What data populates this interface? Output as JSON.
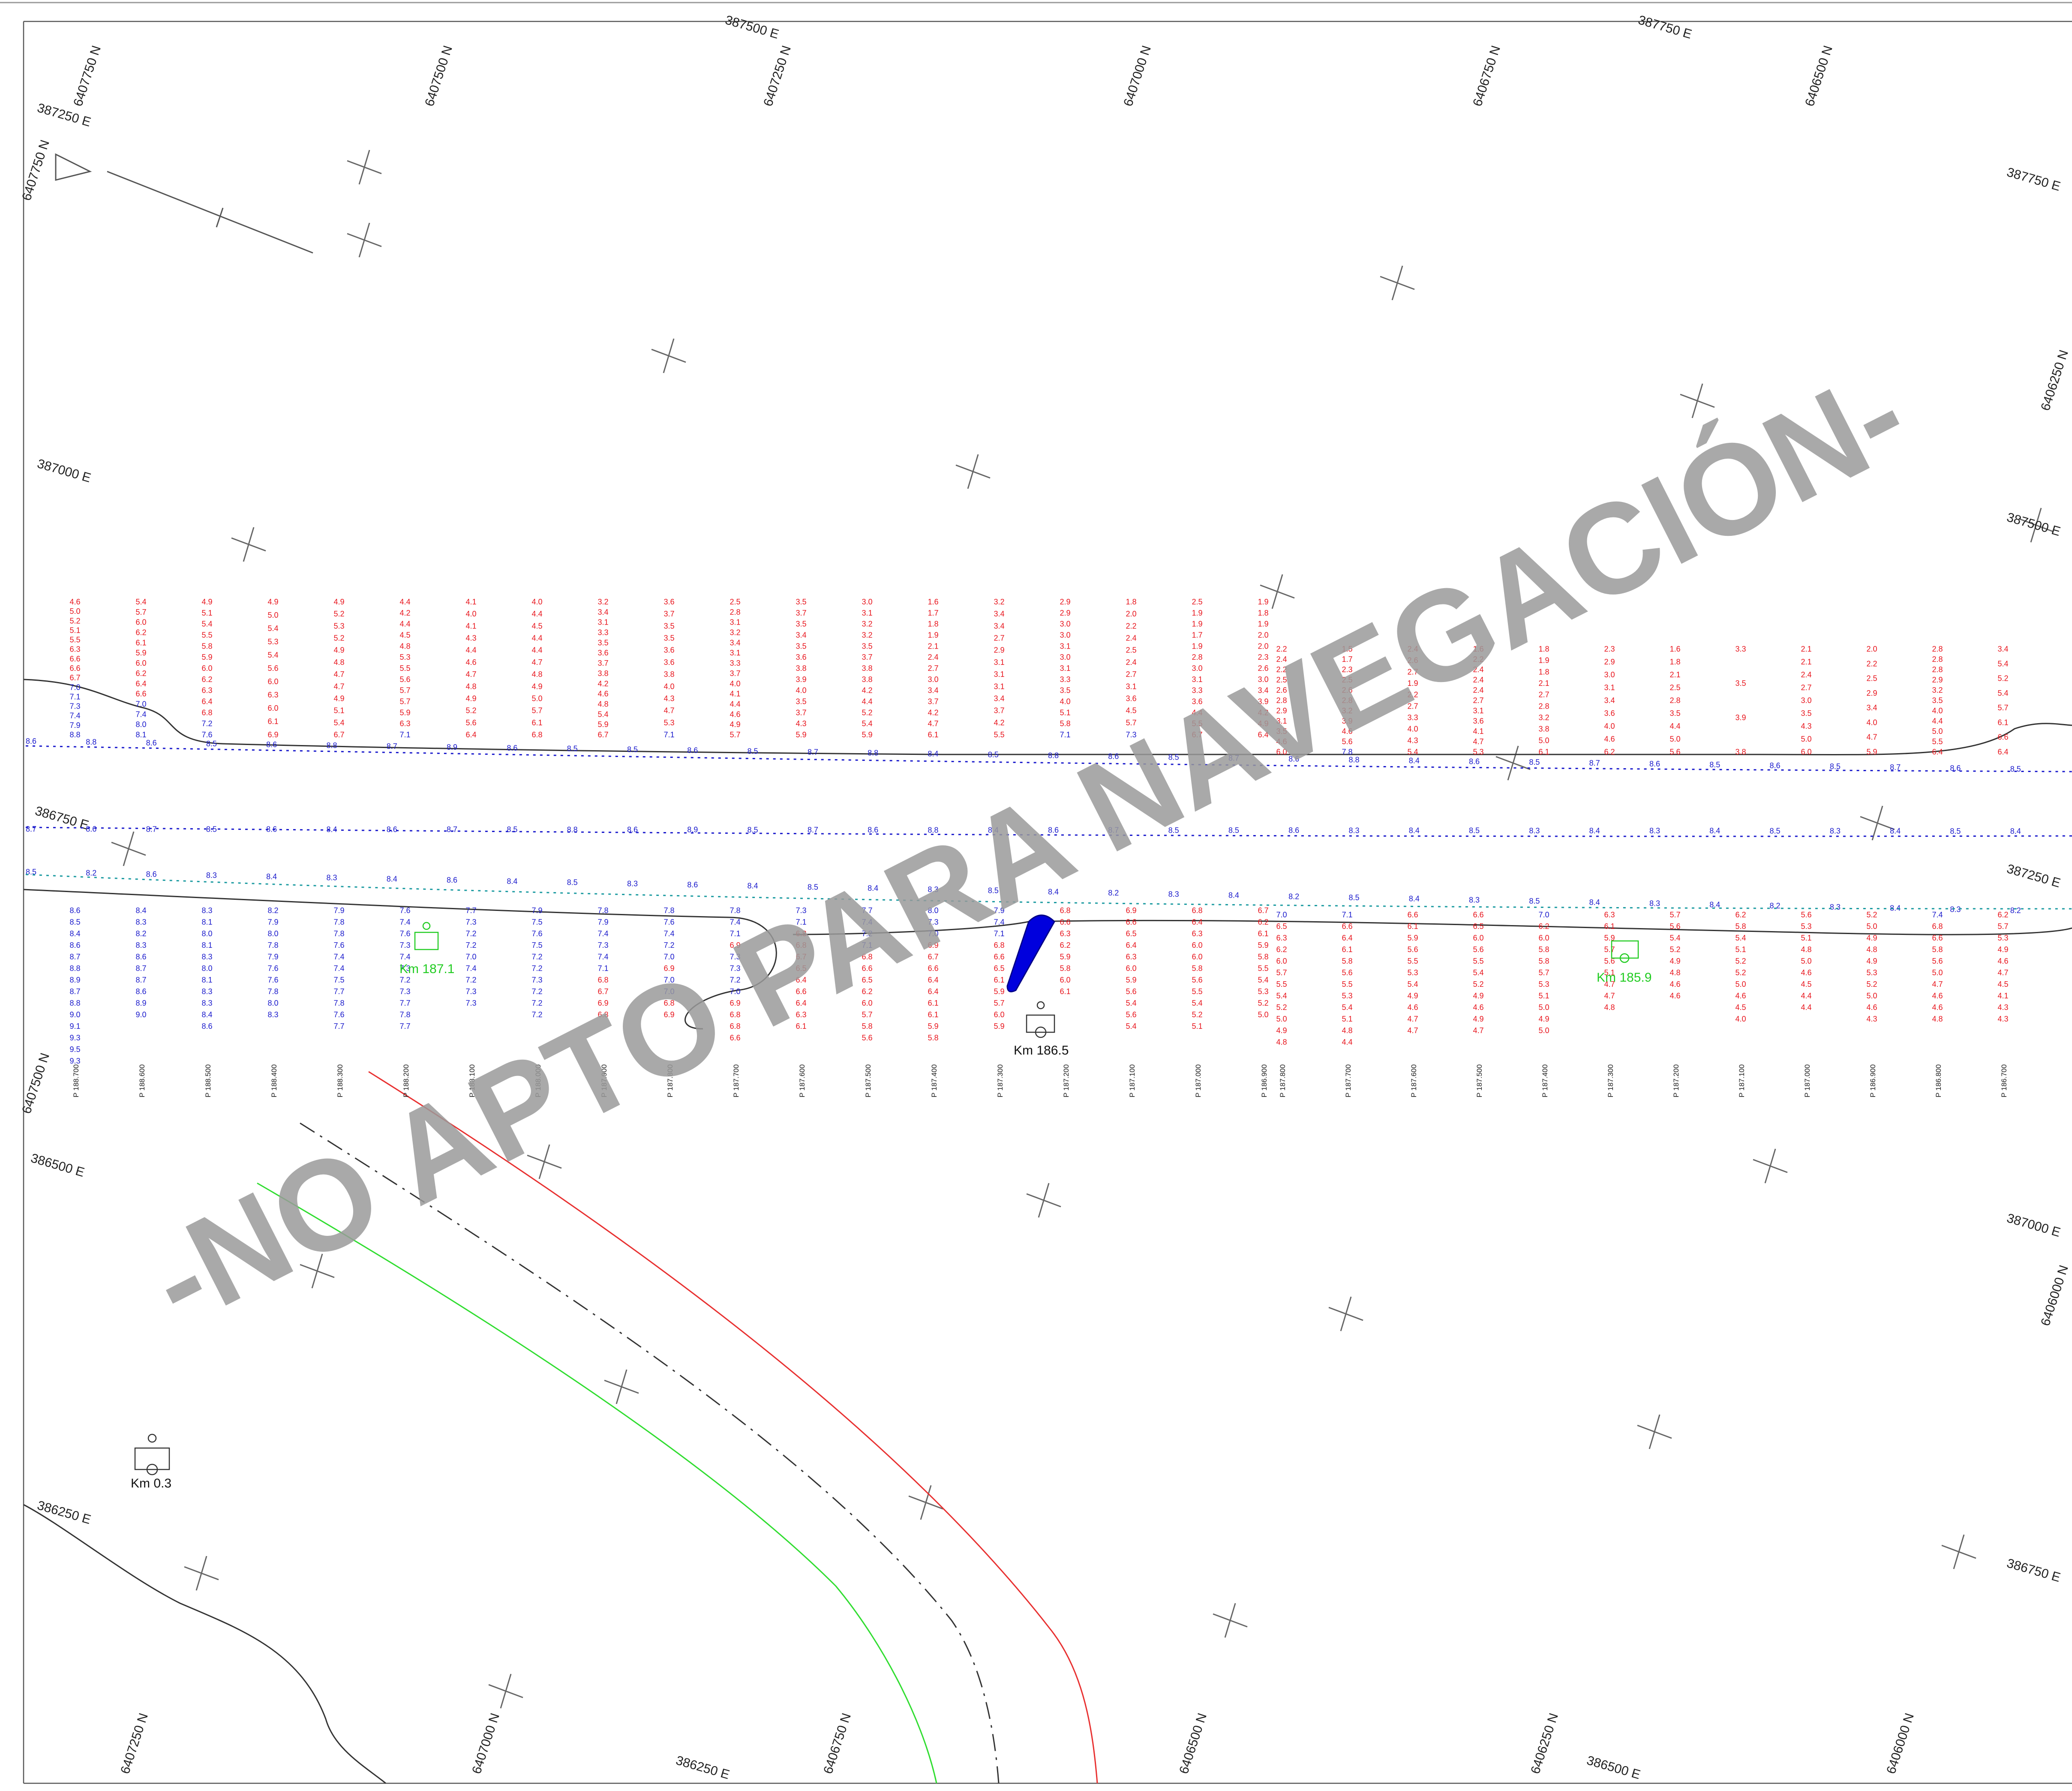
{
  "watermark": "-NO APTO PARA NAVEGACIÓN-",
  "colors": {
    "shallow_soundings": "#e8141c",
    "deep_soundings": "#1a1acc",
    "km_marker_green": "#22cc22",
    "red_line": "#e83030",
    "green_line": "#30dd30",
    "watermark": "#9a9a9a"
  },
  "grid_labels_top": [
    {
      "text": "6407750 N",
      "angle": -72
    },
    {
      "text": "6407500 N",
      "angle": -72
    },
    {
      "text": "387500 E",
      "angle": 16
    },
    {
      "text": "6407250 N",
      "angle": -72
    },
    {
      "text": "6407000 N",
      "angle": -72
    },
    {
      "text": "6406750 N",
      "angle": -72
    },
    {
      "text": "387750 E",
      "angle": 16
    },
    {
      "text": "6406500 N",
      "angle": -72
    }
  ],
  "grid_labels_left": [
    {
      "text": "387250 E",
      "angle": 16
    },
    {
      "text": "6407750 N",
      "angle": -72
    },
    {
      "text": "387000 E",
      "angle": 16
    },
    {
      "text": "386750 E",
      "angle": 16
    },
    {
      "text": "6407500 N",
      "angle": -72
    },
    {
      "text": "386500 E",
      "angle": 16
    },
    {
      "text": "386250 E",
      "angle": 16
    }
  ],
  "grid_labels_right": [
    {
      "text": "387750 E",
      "angle": 16
    },
    {
      "text": "6406250 N",
      "angle": -72
    },
    {
      "text": "387500 E",
      "angle": 16
    },
    {
      "text": "387250 E",
      "angle": 16
    },
    {
      "text": "387000 E",
      "angle": 16
    },
    {
      "text": "6406000 N",
      "angle": -72
    },
    {
      "text": "386750 E",
      "angle": 16
    }
  ],
  "grid_labels_bottom": [
    {
      "text": "6407250 N",
      "angle": -72
    },
    {
      "text": "6407000 N",
      "angle": -72
    },
    {
      "text": "386250 E",
      "angle": 16
    },
    {
      "text": "6406750 N",
      "angle": -72
    },
    {
      "text": "6406500 N",
      "angle": -72
    },
    {
      "text": "6406250 N",
      "angle": -72
    },
    {
      "text": "386500 E",
      "angle": 16
    },
    {
      "text": "6406000 N",
      "angle": -72
    }
  ],
  "profiles": [
    {
      "label": "P 188.700",
      "top": [
        "4.6",
        "5.0",
        "5.2",
        "5.1",
        "5.5",
        "6.3",
        "6.6",
        "6.6",
        "6.7",
        "7.0",
        "7.1",
        "7.3",
        "7.4",
        "7.9",
        "8.8"
      ],
      "bottom": [
        "8.6",
        "8.5",
        "8.4",
        "8.6",
        "8.7",
        "8.8",
        "8.9",
        "8.7",
        "8.8",
        "9.0",
        "9.1",
        "9.3",
        "9.5",
        "9.3"
      ]
    },
    {
      "label": "P 188.600",
      "top": [
        "5.4",
        "5.7",
        "6.0",
        "6.2",
        "6.1",
        "5.9",
        "6.0",
        "6.2",
        "6.4",
        "6.6",
        "7.0",
        "7.4",
        "8.0",
        "8.1"
      ],
      "bottom": [
        "8.4",
        "8.3",
        "8.2",
        "8.3",
        "8.6",
        "8.7",
        "8.7",
        "8.6",
        "8.9",
        "9.0"
      ]
    },
    {
      "label": "P 188.500",
      "top": [
        "4.9",
        "5.1",
        "5.4",
        "5.5",
        "5.8",
        "5.9",
        "6.0",
        "6.2",
        "6.3",
        "6.4",
        "6.8",
        "7.2",
        "7.6"
      ],
      "bottom": [
        "8.3",
        "8.1",
        "8.0",
        "8.1",
        "8.3",
        "8.0",
        "8.1",
        "8.3",
        "8.3",
        "8.4",
        "8.6"
      ]
    },
    {
      "label": "P 188.400",
      "top": [
        "4.9",
        "5.0",
        "5.4",
        "5.3",
        "5.4",
        "5.6",
        "6.0",
        "6.3",
        "6.0",
        "6.1",
        "6.9"
      ],
      "bottom": [
        "8.2",
        "7.9",
        "8.0",
        "7.8",
        "7.9",
        "7.6",
        "7.6",
        "7.8",
        "8.0",
        "8.3"
      ]
    },
    {
      "label": "P 188.300",
      "top": [
        "4.9",
        "5.2",
        "5.3",
        "5.2",
        "4.9",
        "4.8",
        "4.7",
        "4.7",
        "4.9",
        "5.1",
        "5.4",
        "6.7"
      ],
      "bottom": [
        "7.9",
        "7.8",
        "7.8",
        "7.6",
        "7.4",
        "7.4",
        "7.5",
        "7.7",
        "7.8",
        "7.6",
        "7.7"
      ]
    },
    {
      "label": "P 188.200",
      "top": [
        "4.4",
        "4.2",
        "4.4",
        "4.5",
        "4.8",
        "5.3",
        "5.5",
        "5.6",
        "5.7",
        "5.7",
        "5.9",
        "6.3",
        "7.1"
      ],
      "bottom": [
        "7.6",
        "7.4",
        "7.6",
        "7.3",
        "7.4",
        "7.3",
        "7.2",
        "7.3",
        "7.7",
        "7.8",
        "7.7"
      ]
    },
    {
      "label": "P 188.100",
      "top": [
        "4.1",
        "4.0",
        "4.1",
        "4.3",
        "4.4",
        "4.6",
        "4.7",
        "4.8",
        "4.9",
        "5.2",
        "5.6",
        "6.4"
      ],
      "bottom": [
        "7.7",
        "7.3",
        "7.2",
        "7.2",
        "7.0",
        "7.4",
        "7.2",
        "7.3",
        "7.3"
      ]
    },
    {
      "label": "P 188.000",
      "top": [
        "4.0",
        "4.4",
        "4.5",
        "4.4",
        "4.4",
        "4.7",
        "4.8",
        "4.9",
        "5.0",
        "5.7",
        "6.1",
        "6.8"
      ],
      "bottom": [
        "7.9",
        "7.5",
        "7.6",
        "7.5",
        "7.2",
        "7.2",
        "7.3",
        "7.2",
        "7.2",
        "7.2"
      ]
    },
    {
      "label": "P 187.900",
      "top": [
        "3.2",
        "3.4",
        "3.1",
        "3.3",
        "3.5",
        "3.6",
        "3.7",
        "3.8",
        "4.2",
        "4.6",
        "4.8",
        "5.4",
        "5.9",
        "6.7"
      ],
      "bottom": [
        "7.8",
        "7.9",
        "7.4",
        "7.3",
        "7.4",
        "7.1",
        "6.8",
        "6.7",
        "6.9",
        "6.8"
      ]
    },
    {
      "label": "P 187.800",
      "top": [
        "3.6",
        "3.7",
        "3.5",
        "3.5",
        "3.6",
        "3.6",
        "3.8",
        "4.0",
        "4.3",
        "4.7",
        "5.3",
        "7.1"
      ],
      "bottom": [
        "7.8",
        "7.6",
        "7.4",
        "7.2",
        "7.0",
        "6.9",
        "7.0",
        "7.0",
        "6.8",
        "6.9"
      ]
    },
    {
      "label": "P 187.700",
      "top": [
        "2.5",
        "2.8",
        "3.1",
        "3.2",
        "3.4",
        "3.1",
        "3.3",
        "3.7",
        "4.0",
        "4.1",
        "4.4",
        "4.6",
        "4.9",
        "5.7"
      ],
      "bottom": [
        "7.8",
        "7.4",
        "7.1",
        "6.9",
        "7.3",
        "7.3",
        "7.2",
        "7.0",
        "6.9",
        "6.8",
        "6.8",
        "6.6"
      ]
    },
    {
      "label": "P 187.600",
      "top": [
        "3.5",
        "3.7",
        "3.5",
        "3.4",
        "3.5",
        "3.6",
        "3.8",
        "3.9",
        "4.0",
        "3.5",
        "3.7",
        "4.3",
        "5.9"
      ],
      "bottom": [
        "7.3",
        "7.1",
        "6.8",
        "6.8",
        "6.7",
        "6.5",
        "6.4",
        "6.6",
        "6.4",
        "6.3",
        "6.1"
      ]
    },
    {
      "label": "P 187.500",
      "top": [
        "3.0",
        "3.1",
        "3.2",
        "3.2",
        "3.5",
        "3.7",
        "3.8",
        "3.8",
        "4.2",
        "4.4",
        "5.2",
        "5.4",
        "5.9"
      ],
      "bottom": [
        "7.7",
        "7.4",
        "7.2",
        "7.1",
        "6.8",
        "6.6",
        "6.5",
        "6.2",
        "6.0",
        "5.7",
        "5.8",
        "5.6"
      ]
    },
    {
      "label": "P 187.400",
      "top": [
        "1.6",
        "1.7",
        "1.8",
        "1.9",
        "2.1",
        "2.4",
        "2.7",
        "3.0",
        "3.4",
        "3.7",
        "4.2",
        "4.7",
        "6.1"
      ],
      "bottom": [
        "8.0",
        "7.3",
        "7.0",
        "6.9",
        "6.7",
        "6.6",
        "6.4",
        "6.4",
        "6.1",
        "6.1",
        "5.9",
        "5.8"
      ]
    },
    {
      "label": "P 187.300",
      "top": [
        "3.2",
        "3.4",
        "3.4",
        "2.7",
        "2.9",
        "3.1",
        "3.1",
        "3.1",
        "3.4",
        "3.7",
        "4.2",
        "5.5"
      ],
      "bottom": [
        "7.9",
        "7.4",
        "7.1",
        "6.8",
        "6.6",
        "6.5",
        "6.1",
        "5.9",
        "5.7",
        "6.0",
        "5.9"
      ]
    },
    {
      "label": "P 187.200",
      "top": [
        "2.9",
        "2.9",
        "3.0",
        "3.0",
        "3.1",
        "3.0",
        "3.1",
        "3.3",
        "3.5",
        "4.0",
        "5.1",
        "5.8",
        "7.1"
      ],
      "bottom": [
        "6.8",
        "6.6",
        "6.3",
        "6.2",
        "5.9",
        "5.8",
        "6.0",
        "6.1"
      ]
    },
    {
      "label": "P 187.100",
      "top": [
        "1.8",
        "2.0",
        "2.2",
        "2.4",
        "2.5",
        "2.4",
        "2.7",
        "3.1",
        "3.6",
        "4.5",
        "5.7",
        "7.3"
      ],
      "bottom": [
        "6.9",
        "6.6",
        "6.5",
        "6.4",
        "6.3",
        "6.0",
        "5.9",
        "5.6",
        "5.4",
        "5.6",
        "5.4"
      ]
    },
    {
      "label": "P 187.000",
      "top": [
        "2.5",
        "1.9",
        "1.9",
        "1.7",
        "1.9",
        "2.8",
        "3.0",
        "3.1",
        "3.3",
        "3.6",
        "4.4",
        "5.5",
        "6.7"
      ],
      "bottom": [
        "6.8",
        "6.4",
        "6.3",
        "6.0",
        "6.0",
        "5.8",
        "5.6",
        "5.5",
        "5.4",
        "5.2",
        "5.1"
      ]
    },
    {
      "label": "P 186.900",
      "top": [
        "1.9",
        "1.8",
        "1.9",
        "2.0",
        "2.0",
        "2.3",
        "2.6",
        "3.0",
        "3.4",
        "3.9",
        "4.2",
        "4.9",
        "6.4"
      ],
      "bottom": [
        "6.7",
        "6.2",
        "6.1",
        "5.9",
        "5.8",
        "5.5",
        "5.4",
        "5.3",
        "5.2",
        "5.0"
      ]
    }
  ],
  "profiles_right": [
    {
      "label": "P 187.800",
      "top": [
        "2.2",
        "2.4",
        "2.2",
        "2.5",
        "2.6",
        "2.8",
        "2.9",
        "3.1",
        "3.5",
        "4.6",
        "6.0"
      ],
      "bottom": [
        "7.0",
        "6.5",
        "6.3",
        "6.2",
        "6.0",
        "5.7",
        "5.5",
        "5.4",
        "5.2",
        "5.0",
        "4.9",
        "4.8"
      ]
    },
    {
      "label": "P 187.700",
      "top": [
        "1.5",
        "1.7",
        "2.3",
        "2.5",
        "2.6",
        "2.8",
        "3.2",
        "3.9",
        "4.6",
        "5.6",
        "7.8"
      ],
      "bottom": [
        "7.1",
        "6.6",
        "6.4",
        "6.1",
        "5.8",
        "5.6",
        "5.5",
        "5.3",
        "5.4",
        "5.1",
        "4.8",
        "4.4"
      ]
    },
    {
      "label": "P 187.600",
      "top": [
        "2.4",
        "2.6",
        "2.7",
        "1.9",
        "2.2",
        "2.7",
        "3.3",
        "4.0",
        "4.3",
        "5.4"
      ],
      "bottom": [
        "6.6",
        "6.1",
        "5.9",
        "5.6",
        "5.5",
        "5.3",
        "5.4",
        "4.9",
        "4.6",
        "4.7",
        "4.7"
      ]
    },
    {
      "label": "P 187.500",
      "top": [
        "1.6",
        "2.2",
        "2.4",
        "2.4",
        "2.4",
        "2.7",
        "3.1",
        "3.6",
        "4.1",
        "4.7",
        "5.3"
      ],
      "bottom": [
        "6.6",
        "6.5",
        "6.0",
        "5.6",
        "5.5",
        "5.4",
        "5.2",
        "4.9",
        "4.6",
        "4.9",
        "4.7"
      ]
    },
    {
      "label": "P 187.400",
      "top": [
        "1.8",
        "1.9",
        "1.8",
        "2.1",
        "2.7",
        "2.8",
        "3.2",
        "3.8",
        "5.0",
        "6.1"
      ],
      "bottom": [
        "7.0",
        "6.2",
        "6.0",
        "5.8",
        "5.8",
        "5.7",
        "5.3",
        "5.1",
        "5.0",
        "4.9",
        "5.0"
      ]
    },
    {
      "label": "P 187.300",
      "top": [
        "2.3",
        "2.9",
        "3.0",
        "3.1",
        "3.4",
        "3.6",
        "4.0",
        "4.6",
        "6.2"
      ],
      "bottom": [
        "6.3",
        "6.1",
        "5.9",
        "5.7",
        "5.6",
        "5.1",
        "4.7",
        "4.7",
        "4.8"
      ]
    },
    {
      "label": "P 187.200",
      "top": [
        "1.6",
        "1.8",
        "2.1",
        "2.5",
        "2.8",
        "3.5",
        "4.4",
        "5.0",
        "5.6"
      ],
      "bottom": [
        "5.7",
        "5.6",
        "5.4",
        "5.2",
        "4.9",
        "4.8",
        "4.6",
        "4.6"
      ]
    },
    {
      "label": "P 187.100",
      "top": [
        "3.3",
        "3.5",
        "3.9",
        "3.8"
      ],
      "bottom": [
        "6.2",
        "5.8",
        "5.4",
        "5.1",
        "5.2",
        "5.2",
        "5.0",
        "4.6",
        "4.5",
        "4.0"
      ]
    },
    {
      "label": "P 187.000",
      "top": [
        "2.1",
        "2.1",
        "2.4",
        "2.7",
        "3.0",
        "3.5",
        "4.3",
        "5.0",
        "6.0"
      ],
      "bottom": [
        "5.6",
        "5.3",
        "5.1",
        "4.8",
        "5.0",
        "4.6",
        "4.5",
        "4.4",
        "4.4"
      ]
    },
    {
      "label": "P 186.900",
      "top": [
        "2.0",
        "2.2",
        "2.5",
        "2.9",
        "3.4",
        "4.0",
        "4.7",
        "5.9"
      ],
      "bottom": [
        "5.2",
        "5.0",
        "4.9",
        "4.8",
        "4.9",
        "5.3",
        "5.2",
        "5.0",
        "4.6",
        "4.3"
      ]
    },
    {
      "label": "P 186.800",
      "top": [
        "2.8",
        "2.8",
        "2.8",
        "2.9",
        "3.2",
        "3.5",
        "4.0",
        "4.4",
        "5.0",
        "5.5",
        "6.4"
      ],
      "bottom": [
        "7.4",
        "6.8",
        "6.6",
        "5.8",
        "5.6",
        "5.0",
        "4.7",
        "4.6",
        "4.6",
        "4.8"
      ]
    },
    {
      "label": "P 186.700",
      "top": [
        "3.4",
        "5.4",
        "5.2",
        "5.4",
        "5.7",
        "6.1",
        "6.6",
        "6.4"
      ],
      "bottom": [
        "6.2",
        "5.7",
        "5.3",
        "4.9",
        "4.6",
        "4.7",
        "4.5",
        "4.1",
        "4.3",
        "4.3"
      ]
    }
  ],
  "channel_depths_upper": [
    "8.6",
    "8.8",
    "8.6",
    "8.5",
    "8.6",
    "8.8",
    "8.7",
    "8.9",
    "8.6",
    "8.5",
    "8.5",
    "8.6",
    "8.5",
    "8.7",
    "8.8",
    "8.4",
    "8.5",
    "8.8",
    "8.6",
    "8.5",
    "8.7",
    "8.6",
    "8.8",
    "8.4",
    "8.6",
    "8.5",
    "8.7",
    "8.6",
    "8.5",
    "8.6",
    "8.5",
    "8.7",
    "8.6",
    "8.5"
  ],
  "channel_depths_middle": [
    "8.7",
    "8.6",
    "8.7",
    "8.5",
    "8.6",
    "8.4",
    "8.6",
    "8.7",
    "8.5",
    "8.8",
    "8.6",
    "8.9",
    "8.5",
    "8.7",
    "8.6",
    "8.8",
    "8.4",
    "8.6",
    "8.7",
    "8.5",
    "8.5",
    "8.6",
    "8.3",
    "8.4",
    "8.5",
    "8.3",
    "8.4",
    "8.3",
    "8.4",
    "8.5",
    "8.3",
    "8.4",
    "8.5",
    "8.4"
  ],
  "channel_depths_lower": [
    "8.5",
    "8.2",
    "8.6",
    "8.3",
    "8.4",
    "8.3",
    "8.4",
    "8.6",
    "8.4",
    "8.5",
    "8.3",
    "8.6",
    "8.4",
    "8.5",
    "8.4",
    "8.3",
    "8.5",
    "8.4",
    "8.2",
    "8.3",
    "8.4",
    "8.2",
    "8.5",
    "8.4",
    "8.3",
    "8.5",
    "8.4",
    "8.3",
    "8.4",
    "8.2",
    "8.3",
    "8.4",
    "8.3",
    "8.2"
  ],
  "km_markers": [
    {
      "label": "Km 187.1",
      "style": "green"
    },
    {
      "label": "Km 186.5",
      "style": "black"
    },
    {
      "label": "Km 185.9",
      "style": "green"
    },
    {
      "label": "Km 0.3",
      "style": "black"
    }
  ]
}
